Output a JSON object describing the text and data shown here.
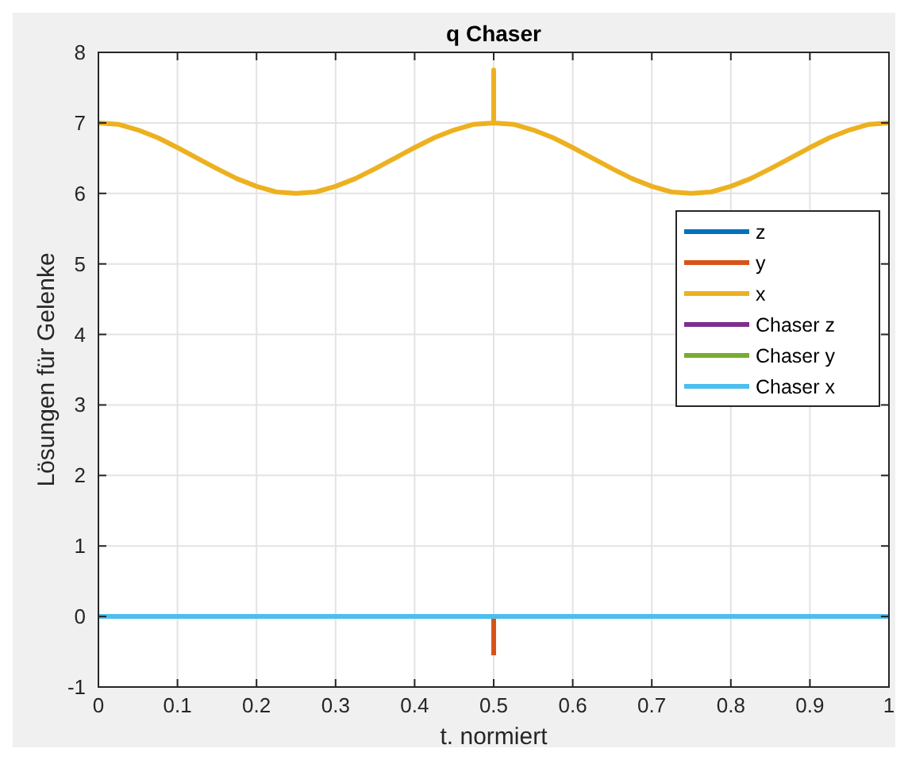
{
  "chart_data": {
    "type": "line",
    "title": "q Chaser",
    "xlabel": "t. normiert",
    "ylabel": "Lösungen für Gelenke",
    "xlim": [
      0,
      1
    ],
    "xticks": [
      0,
      0.1,
      0.2,
      0.3,
      0.4,
      0.5,
      0.6,
      0.7,
      0.8,
      0.9,
      1
    ],
    "ylim": [
      -1,
      8
    ],
    "yticks": [
      -1,
      0,
      1,
      2,
      3,
      4,
      5,
      6,
      7,
      8
    ],
    "grid": true,
    "legend": "right",
    "line_style": "solid",
    "marker": "none",
    "series": [
      {
        "name": "z",
        "color": "#0072bd"
      },
      {
        "name": "y",
        "color": "#d95319",
        "x": [
          0.5,
          0.5
        ],
        "values": [
          0,
          -0.55
        ]
      },
      {
        "name": "x",
        "color": "#edb120",
        "x": [
          0,
          0.025,
          0.05,
          0.075,
          0.1,
          0.125,
          0.15,
          0.175,
          0.2,
          0.225,
          0.25,
          0.275,
          0.3,
          0.325,
          0.35,
          0.375,
          0.4,
          0.425,
          0.45,
          0.475,
          0.5,
          0.5,
          0.5,
          0.525,
          0.55,
          0.575,
          0.6,
          0.625,
          0.65,
          0.675,
          0.7,
          0.725,
          0.75,
          0.775,
          0.8,
          0.825,
          0.85,
          0.875,
          0.9,
          0.925,
          0.95,
          0.975,
          1
        ],
        "values": [
          7,
          6.98,
          6.9,
          6.79,
          6.65,
          6.5,
          6.35,
          6.21,
          6.1,
          6.02,
          6,
          6.02,
          6.1,
          6.21,
          6.35,
          6.5,
          6.65,
          6.79,
          6.9,
          6.98,
          7,
          7.75,
          7,
          6.98,
          6.9,
          6.79,
          6.65,
          6.5,
          6.35,
          6.21,
          6.1,
          6.02,
          6,
          6.02,
          6.1,
          6.21,
          6.35,
          6.5,
          6.65,
          6.79,
          6.9,
          6.98,
          7
        ]
      },
      {
        "name": "Chaser z",
        "color": "#7e2f8e"
      },
      {
        "name": "Chaser y",
        "color": "#77ac30"
      },
      {
        "name": "Chaser x",
        "color": "#4dbeee",
        "x": [
          0,
          1
        ],
        "values": [
          0,
          0
        ]
      }
    ]
  }
}
